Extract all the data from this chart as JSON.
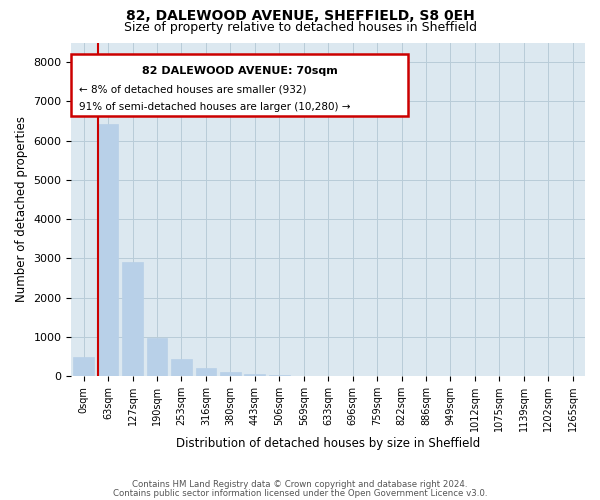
{
  "title1": "82, DALEWOOD AVENUE, SHEFFIELD, S8 0EH",
  "title2": "Size of property relative to detached houses in Sheffield",
  "xlabel": "Distribution of detached houses by size in Sheffield",
  "ylabel": "Number of detached properties",
  "categories": [
    "0sqm",
    "63sqm",
    "127sqm",
    "190sqm",
    "253sqm",
    "316sqm",
    "380sqm",
    "443sqm",
    "506sqm",
    "569sqm",
    "633sqm",
    "696sqm",
    "759sqm",
    "822sqm",
    "886sqm",
    "949sqm",
    "1012sqm",
    "1075sqm",
    "1139sqm",
    "1202sqm",
    "1265sqm"
  ],
  "values": [
    480,
    6420,
    2920,
    980,
    430,
    200,
    100,
    60,
    30,
    18,
    12,
    8,
    6,
    4,
    3,
    2,
    2,
    1,
    1,
    1,
    1
  ],
  "bar_color": "#b8d0e8",
  "annotation_text_line1": "82 DALEWOOD AVENUE: 70sqm",
  "annotation_text_line2": "← 8% of detached houses are smaller (932)",
  "annotation_text_line3": "91% of semi-detached houses are larger (10,280) →",
  "annotation_box_color": "#cc0000",
  "ylim": [
    0,
    8500
  ],
  "yticks": [
    0,
    1000,
    2000,
    3000,
    4000,
    5000,
    6000,
    7000,
    8000
  ],
  "footer_line1": "Contains HM Land Registry data © Crown copyright and database right 2024.",
  "footer_line2": "Contains public sector information licensed under the Open Government Licence v3.0.",
  "background_color": "#ffffff",
  "plot_bg_color": "#dce8f0",
  "grid_color": "#b8ccd8",
  "property_line_color": "#cc0000",
  "property_line_x": 0.57
}
